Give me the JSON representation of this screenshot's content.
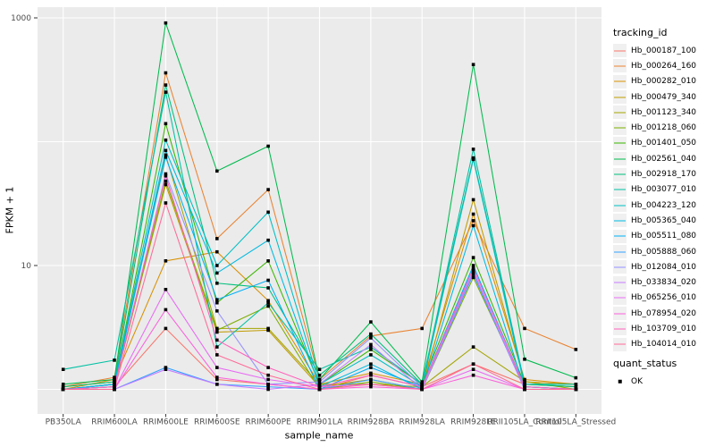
{
  "chart_data": {
    "type": "line",
    "title": "",
    "xlabel": "sample_name",
    "ylabel": "FPKM + 1",
    "y_scale": "log10",
    "ylim": [
      0.65,
      1200
    ],
    "grid": true,
    "legend_position": "right",
    "panel_bg": "#EBEBEB",
    "grid_color": "#FFFFFF",
    "tick_color": "#333333",
    "tick_label_color": "#4d4d4d",
    "point_color": "#000000",
    "y_ticks": [
      {
        "value": 1000,
        "label": "1000"
      },
      {
        "value": 10,
        "label": "10"
      }
    ],
    "grid_values": [
      1,
      10,
      100,
      1000
    ],
    "categories": [
      "PB350LA",
      "RRIM600LA",
      "RRIM600LE",
      "RRIM600SE",
      "RRIM600PE",
      "RRIM901LA",
      "RRIM928BA",
      "RRIM928LA",
      "RRIM928LE",
      "RRII105LA_Control",
      "RRII105LA_Stressed"
    ],
    "series": [
      {
        "name": "Hb_000187_100",
        "color": "#F8766D",
        "values": [
          1.0,
          1.05,
          3.1,
          1.2,
          1.1,
          1.0,
          1.3,
          1.05,
          1.6,
          1.1,
          1.05
        ]
      },
      {
        "name": "Hb_000264_160",
        "color": "#EA8331",
        "values": [
          1.05,
          1.25,
          360,
          16.5,
          41,
          1.2,
          2.7,
          3.1,
          23,
          3.1,
          2.1
        ]
      },
      {
        "name": "Hb_000282_010",
        "color": "#D89000",
        "values": [
          1.0,
          1.2,
          10.9,
          12.9,
          5.2,
          1.1,
          1.35,
          1.1,
          26,
          1.2,
          1.1
        ]
      },
      {
        "name": "Hb_000479_340",
        "color": "#C09B00",
        "values": [
          1.0,
          1.1,
          45,
          2.9,
          3.0,
          1.05,
          1.2,
          1.0,
          34,
          1.15,
          1.1
        ]
      },
      {
        "name": "Hb_001123_340",
        "color": "#A3A500",
        "values": [
          1.05,
          1.15,
          78,
          3.1,
          3.1,
          1.1,
          1.1,
          1.05,
          2.2,
          1.16,
          1.0
        ]
      },
      {
        "name": "Hb_001218_060",
        "color": "#7CAE00",
        "values": [
          1.0,
          1.05,
          48,
          3.0,
          4.7,
          1.0,
          1.15,
          1.0,
          8.0,
          1.05,
          1.0
        ]
      },
      {
        "name": "Hb_001401_050",
        "color": "#39B600",
        "values": [
          1.0,
          1.1,
          140,
          5.0,
          10.9,
          1.1,
          2.1,
          1.1,
          11.6,
          1.1,
          1.05
        ]
      },
      {
        "name": "Hb_002561_040",
        "color": "#00BB4E",
        "values": [
          1.1,
          1.2,
          910,
          58,
          92,
          1.2,
          3.5,
          1.15,
          420,
          1.75,
          1.24
        ]
      },
      {
        "name": "Hb_002918_170",
        "color": "#00BF7D",
        "values": [
          1.05,
          1.15,
          287,
          7.2,
          6.6,
          1.3,
          2.8,
          1.1,
          74,
          1.1,
          1.05
        ]
      },
      {
        "name": "Hb_003077_010",
        "color": "#00C1A3",
        "values": [
          1.45,
          1.72,
          251,
          2.2,
          5.0,
          1.45,
          2.2,
          1.1,
          87,
          1.1,
          1.1
        ]
      },
      {
        "name": "Hb_004223_120",
        "color": "#00BFC4",
        "values": [
          1.0,
          1.1,
          103,
          10,
          27,
          1.1,
          1.9,
          1.05,
          72,
          1.05,
          1.0
        ]
      },
      {
        "name": "Hb_005365_040",
        "color": "#00BAE0",
        "values": [
          1.0,
          1.05,
          85,
          8.7,
          16,
          1.05,
          1.6,
          1.0,
          21,
          1.0,
          1.0
        ]
      },
      {
        "name": "Hb_005511_080",
        "color": "#00B0F6",
        "values": [
          1.0,
          1.1,
          75,
          5.3,
          7.6,
          1.0,
          1.5,
          1.05,
          10,
          1.05,
          1.0
        ]
      },
      {
        "name": "Hb_005888_060",
        "color": "#35A2FF",
        "values": [
          1.0,
          1.0,
          1.5,
          1.1,
          1.05,
          1.0,
          1.2,
          1.0,
          8.5,
          1.0,
          1.0
        ]
      },
      {
        "name": "Hb_012084_010",
        "color": "#9590FF",
        "values": [
          1.0,
          1.05,
          55,
          4.3,
          1.1,
          1.15,
          2.6,
          1.05,
          9.0,
          1.0,
          1.0
        ]
      },
      {
        "name": "Hb_033834_020",
        "color": "#C77CFF",
        "values": [
          1.0,
          1.0,
          1.45,
          1.1,
          1.0,
          1.1,
          2.3,
          1.0,
          8.8,
          1.0,
          1.0
        ]
      },
      {
        "name": "Hb_065256_010",
        "color": "#E76BF3",
        "values": [
          1.0,
          1.0,
          6.4,
          1.5,
          1.2,
          1.05,
          1.1,
          1.0,
          1.45,
          1.0,
          1.0
        ]
      },
      {
        "name": "Hb_078954_020",
        "color": "#FA62DB",
        "values": [
          1.0,
          1.0,
          4.4,
          1.25,
          1.1,
          1.0,
          1.05,
          1.0,
          1.3,
          1.0,
          1.0
        ]
      },
      {
        "name": "Hb_103709_010",
        "color": "#FF62BC",
        "values": [
          1.0,
          1.05,
          53,
          2.5,
          1.5,
          1.05,
          1.3,
          1.05,
          9.5,
          1.05,
          1.0
        ]
      },
      {
        "name": "Hb_104014_010",
        "color": "#FF6A98",
        "values": [
          1.0,
          1.0,
          32,
          1.9,
          1.3,
          1.0,
          1.1,
          1.0,
          1.6,
          1.0,
          1.0
        ]
      }
    ]
  },
  "legend": {
    "title": "tracking_id"
  },
  "quant_legend": {
    "title": "quant_status",
    "items": [
      "OK"
    ]
  }
}
